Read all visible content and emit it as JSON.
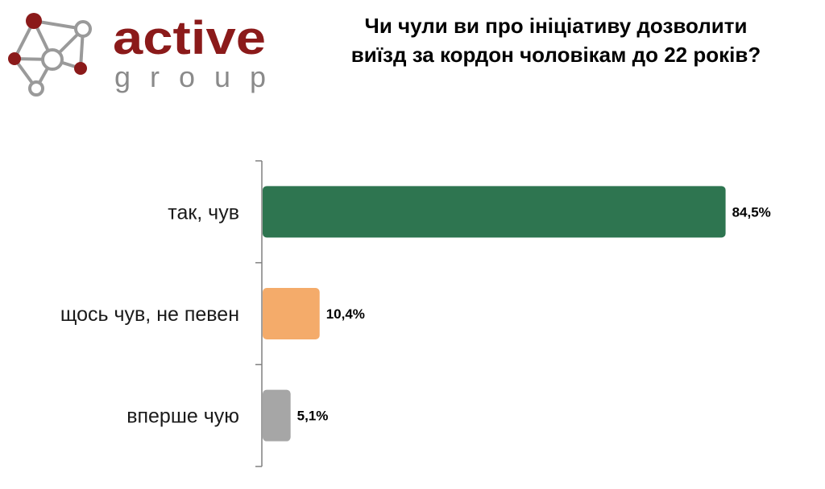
{
  "logo": {
    "word1": "active",
    "word2": "group",
    "colors": {
      "brand": "#8b1a1a",
      "network": "#9a9a9a",
      "gray_text": "#8a8a8a"
    }
  },
  "title": {
    "line1": "Чи чули ви про ініціативу дозволити",
    "line2": "виїзд за кордон чоловікам до 22 років?"
  },
  "chart_data": {
    "type": "bar",
    "orientation": "horizontal",
    "title": "Чи чули ви про ініціативу дозволити виїзд за кордон чоловікам до 22 років?",
    "categories": [
      "так, чув",
      "щось чув, не певен",
      "вперше чую"
    ],
    "values": [
      84.5,
      10.4,
      5.1
    ],
    "value_labels": [
      "84,5%",
      "10,4%",
      "5,1%"
    ],
    "colors": [
      "#2e7550",
      "#f4ab6a",
      "#a6a6a6"
    ],
    "xlim": [
      0,
      100
    ],
    "grid": false,
    "legend": "none"
  }
}
